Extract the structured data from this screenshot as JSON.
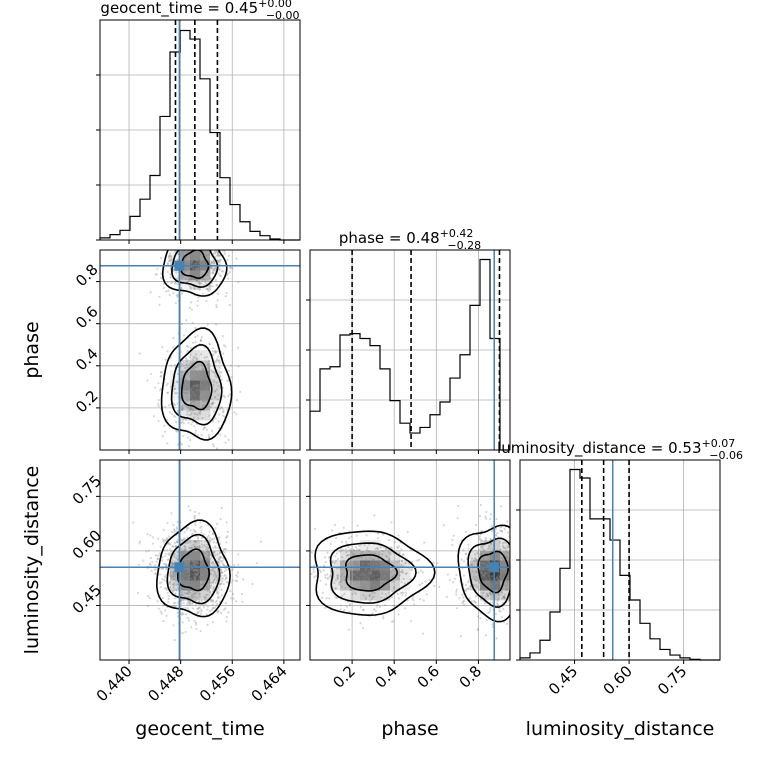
{
  "chart_data": {
    "type": "corner",
    "parameters": [
      "geocent_time",
      "phase",
      "luminosity_distance"
    ],
    "truths": {
      "geocent_time": 0.4478,
      "phase": 0.875,
      "luminosity_distance": 0.555
    },
    "titles": {
      "geocent_time": {
        "name": "geocent_time",
        "median": "0.45",
        "plus": "+0.00",
        "minus": "−0.00"
      },
      "phase": {
        "name": "phase",
        "median": "0.48",
        "plus": "+0.42",
        "minus": "−0.28"
      },
      "luminosity_distance": {
        "name": "luminosity_distance",
        "median": "0.53",
        "plus": "+0.07",
        "minus": "−0.06"
      }
    },
    "axes": {
      "geocent_time": {
        "label": "geocent_time",
        "range": [
          0.4355,
          0.4665
        ],
        "ticks": [
          0.44,
          0.448,
          0.456,
          0.464
        ],
        "tick_labels": [
          "0.440",
          "0.448",
          "0.456",
          "0.464"
        ]
      },
      "phase": {
        "label": "phase",
        "range": [
          0.0,
          0.95
        ],
        "ticks": [
          0.2,
          0.4,
          0.6,
          0.8
        ],
        "tick_labels": [
          "0.2",
          "0.4",
          "0.6",
          "0.8"
        ]
      },
      "luminosity_distance": {
        "label": "luminosity_distance",
        "range": [
          0.3,
          0.85
        ],
        "ticks": [
          0.45,
          0.6,
          0.75
        ],
        "tick_labels": [
          "0.45",
          "0.60",
          "0.75"
        ]
      }
    },
    "histograms": {
      "geocent_time": {
        "edges_range": [
          0.4355,
          0.4665
        ],
        "bins": 20,
        "counts": [
          2,
          5,
          9,
          22,
          38,
          60,
          115,
          175,
          195,
          187,
          150,
          100,
          58,
          33,
          17,
          8,
          4,
          1,
          0,
          0
        ],
        "quantiles": [
          0.4472,
          0.4502,
          0.4537
        ]
      },
      "phase": {
        "edges_range": [
          0.0,
          0.95
        ],
        "bins": 20,
        "counts": [
          55,
          115,
          118,
          163,
          165,
          158,
          148,
          115,
          70,
          38,
          24,
          32,
          50,
          68,
          102,
          135,
          205,
          270,
          158,
          0
        ],
        "quantiles": [
          0.2,
          0.48,
          0.9
        ]
      },
      "luminosity_distance": {
        "edges_range": [
          0.3,
          0.85
        ],
        "bins": 20,
        "counts": [
          3,
          10,
          28,
          68,
          130,
          270,
          258,
          200,
          200,
          170,
          120,
          85,
          52,
          30,
          15,
          7,
          3,
          1,
          0,
          0
        ],
        "quantiles": [
          0.47,
          0.53,
          0.6
        ]
      }
    },
    "pairs": [
      {
        "x": "geocent_time",
        "y": "phase",
        "modes": [
          {
            "cx": 0.4502,
            "cy": 0.88,
            "sx": 0.0021,
            "sy": 0.065,
            "w": 1.0
          },
          {
            "cx": 0.4505,
            "cy": 0.3,
            "sx": 0.0023,
            "sy": 0.11,
            "w": 0.85
          }
        ]
      },
      {
        "x": "geocent_time",
        "y": "luminosity_distance",
        "modes": [
          {
            "cx": 0.45,
            "cy": 0.545,
            "sx": 0.0024,
            "sy": 0.055,
            "w": 1.0
          }
        ]
      },
      {
        "x": "phase",
        "y": "luminosity_distance",
        "modes": [
          {
            "cx": 0.28,
            "cy": 0.54,
            "sx": 0.12,
            "sy": 0.05,
            "w": 0.9
          },
          {
            "cx": 0.87,
            "cy": 0.545,
            "sx": 0.07,
            "sy": 0.055,
            "w": 1.0
          }
        ]
      }
    ],
    "colors": {
      "truth": "#4682b4",
      "hist": "#000000",
      "grid": "#b0b0b0",
      "contour": "#000000"
    },
    "grid": true
  }
}
